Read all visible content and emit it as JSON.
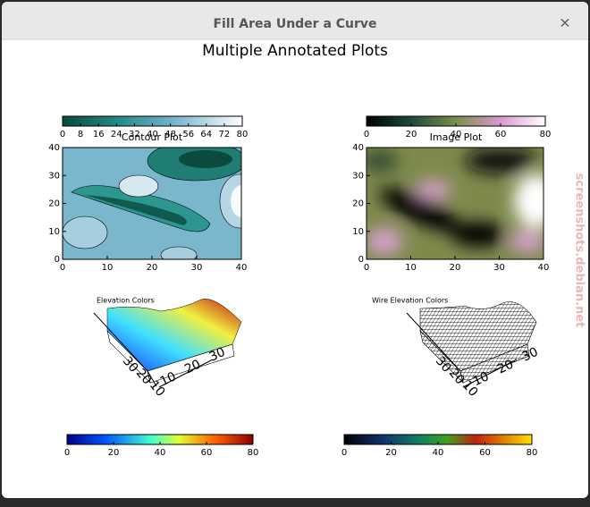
{
  "window": {
    "title": "Fill Area Under a Curve",
    "close": "×"
  },
  "plot_title": "Multiple Annotated Plots",
  "panels": [
    {
      "title": "Contour Plot",
      "colorbar_ticks": [
        0,
        8,
        16,
        24,
        32,
        40,
        48,
        56,
        64,
        72,
        80
      ],
      "x_ticks": [
        0,
        10,
        20,
        30,
        40
      ],
      "y_ticks": [
        0,
        10,
        20,
        30,
        40
      ]
    },
    {
      "title": "Image Plot",
      "colorbar_ticks": [
        0,
        20,
        40,
        60,
        80
      ],
      "x_ticks": [
        0,
        10,
        20,
        30,
        40
      ],
      "y_ticks": [
        0,
        10,
        20,
        30,
        40
      ]
    },
    {
      "title": "Elevation Colors",
      "colorbar_ticks": [
        0,
        20,
        40,
        60,
        80
      ],
      "x_ticks": [
        10,
        20,
        30
      ],
      "y_ticks": [
        10,
        20,
        30
      ]
    },
    {
      "title": "Wire Elevation Colors",
      "colorbar_ticks": [
        0,
        20,
        40,
        60,
        80
      ],
      "x_ticks": [
        10,
        20,
        30
      ],
      "y_ticks": [
        10,
        20,
        30
      ]
    }
  ],
  "watermark": "screenshots.debian.net"
}
